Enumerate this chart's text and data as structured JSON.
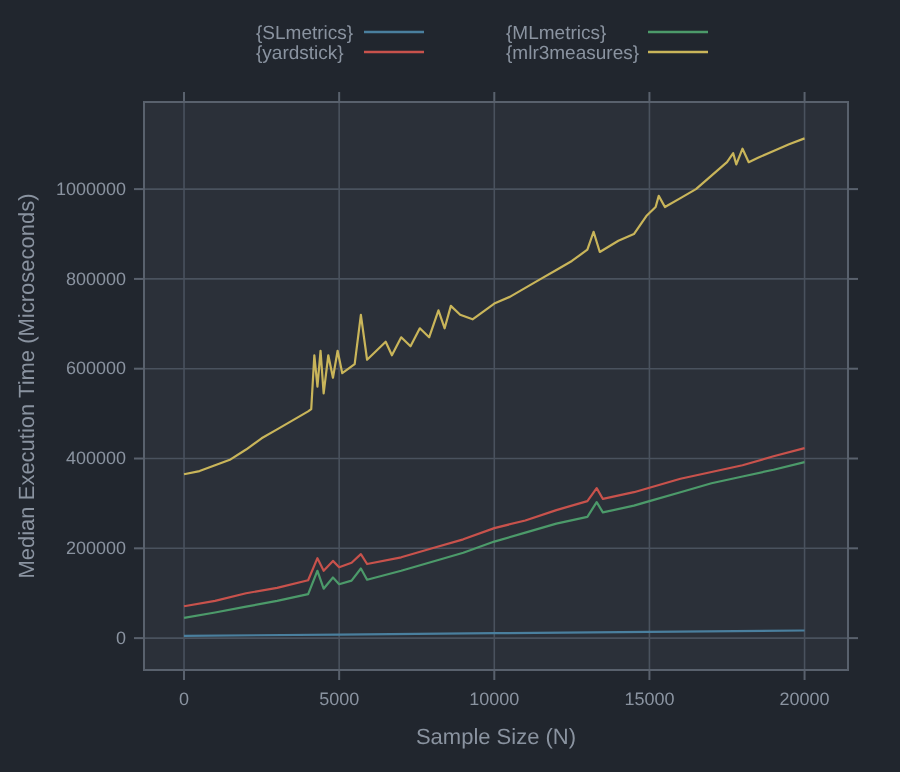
{
  "chart_data": {
    "type": "line",
    "xlabel": "Sample Size (N)",
    "ylabel": "Median Execution Time (Microseconds)",
    "xlim": [
      -1290,
      21400
    ],
    "xticks": [
      0,
      5000,
      10000,
      15000,
      20000
    ],
    "ylim": [
      -71000,
      1194000
    ],
    "yticks": [
      0,
      200000,
      400000,
      600000,
      800000,
      1000000
    ],
    "grid": true,
    "legend": "top",
    "line_style": "solid",
    "series": [
      {
        "name": "{SLmetrics}",
        "color": "#4a7f9e",
        "x": [
          0,
          5000,
          10000,
          15000,
          20000
        ],
        "values": [
          5000,
          8000,
          11000,
          14000,
          17000
        ]
      },
      {
        "name": "{MLmetrics}",
        "color": "#4c9a6a",
        "x": [
          0,
          1000,
          2000,
          3000,
          4000,
          4300,
          4500,
          4800,
          5000,
          5400,
          5700,
          5900,
          7000,
          8000,
          9000,
          10000,
          11000,
          12000,
          13000,
          13300,
          13500,
          14500,
          15000,
          16000,
          17000,
          18000,
          19000,
          20000
        ],
        "values": [
          45000,
          57000,
          70000,
          83000,
          98000,
          150000,
          110000,
          135000,
          120000,
          128000,
          155000,
          130000,
          150000,
          170000,
          190000,
          215000,
          235000,
          255000,
          270000,
          303000,
          280000,
          295000,
          305000,
          325000,
          345000,
          360000,
          375000,
          392000
        ]
      },
      {
        "name": "{yardstick}",
        "color": "#c8524c",
        "x": [
          0,
          1000,
          2000,
          3000,
          4000,
          4300,
          4500,
          4800,
          5000,
          5400,
          5700,
          5900,
          7000,
          8000,
          9000,
          10000,
          11000,
          12000,
          13000,
          13300,
          13500,
          14500,
          15000,
          16000,
          17000,
          18000,
          19000,
          20000
        ],
        "values": [
          71000,
          83000,
          100000,
          112000,
          129000,
          178000,
          150000,
          172000,
          158000,
          168000,
          187000,
          165000,
          180000,
          200000,
          220000,
          245000,
          262000,
          285000,
          305000,
          334000,
          310000,
          325000,
          335000,
          355000,
          370000,
          385000,
          405000,
          423000
        ]
      },
      {
        "name": "{mlr3measures}",
        "color": "#c9b55a",
        "x": [
          0,
          500,
          1000,
          1500,
          2000,
          2500,
          3000,
          3500,
          4000,
          4100,
          4200,
          4300,
          4400,
          4500,
          4650,
          4800,
          4950,
          5100,
          5300,
          5500,
          5700,
          5900,
          6200,
          6500,
          6700,
          7000,
          7300,
          7600,
          7900,
          8200,
          8400,
          8600,
          8900,
          9300,
          9700,
          10000,
          10500,
          11000,
          11500,
          12000,
          12500,
          13000,
          13200,
          13400,
          14000,
          14500,
          14900,
          15200,
          15300,
          15500,
          16000,
          16500,
          17000,
          17500,
          17700,
          17800,
          18000,
          18200,
          18500,
          19000,
          19500,
          20000
        ],
        "values": [
          365000,
          372000,
          385000,
          398000,
          420000,
          445000,
          465000,
          485000,
          505000,
          510000,
          630000,
          560000,
          640000,
          545000,
          630000,
          580000,
          640000,
          590000,
          600000,
          610000,
          720000,
          620000,
          640000,
          660000,
          630000,
          670000,
          650000,
          690000,
          670000,
          730000,
          690000,
          740000,
          720000,
          710000,
          730000,
          745000,
          760000,
          780000,
          800000,
          820000,
          840000,
          865000,
          905000,
          860000,
          885000,
          900000,
          940000,
          960000,
          985000,
          960000,
          980000,
          1000000,
          1030000,
          1060000,
          1080000,
          1055000,
          1090000,
          1060000,
          1070000,
          1085000,
          1100000,
          1113000
        ]
      }
    ]
  }
}
